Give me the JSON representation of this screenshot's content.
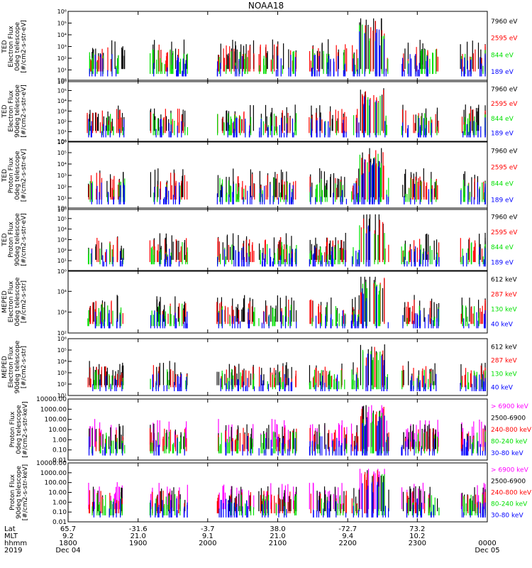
{
  "title": "NOAA18",
  "colors": {
    "black": "#000000",
    "red": "#ff0000",
    "green": "#00e000",
    "blue": "#0000ff",
    "magenta": "#ff00ff"
  },
  "footer": {
    "row_labels": [
      "Lat",
      "MLT",
      "hhmm",
      "2019"
    ],
    "columns": [
      {
        "values": [
          "65.7",
          "9.2",
          "1800",
          "Dec 04"
        ]
      },
      {
        "values": [
          "-31.6",
          "21.0",
          "1900",
          ""
        ]
      },
      {
        "values": [
          "-3.7",
          "9.1",
          "2000",
          ""
        ]
      },
      {
        "values": [
          "38.0",
          "21.0",
          "2100",
          ""
        ]
      },
      {
        "values": [
          "-72.7",
          "9.4",
          "2200",
          ""
        ]
      },
      {
        "values": [
          "73.2",
          "10.2",
          "2300",
          ""
        ]
      },
      {
        "values": [
          "",
          "",
          "0000",
          "Dec 05"
        ]
      }
    ]
  },
  "chart_data": [
    {
      "type": "scatter",
      "ylabel": [
        "TED",
        "Electron Flux",
        "0deg telescope",
        "[#/cm2-s-str-eV]"
      ],
      "yscale": "log",
      "ylim": [
        1,
        1000000
      ],
      "ytick_labels": [
        "10^0",
        "10^1",
        "10^2",
        "10^3",
        "10^4",
        "10^5",
        "10^6"
      ],
      "x": [
        "1800",
        "1900",
        "2000",
        "2100",
        "2200",
        "2300",
        "0000"
      ],
      "series": [
        {
          "name": "7960 eV",
          "color": "#000000"
        },
        {
          "name": "2595 eV",
          "color": "#ff0000"
        },
        {
          "name": "844 eV",
          "color": "#00e000"
        },
        {
          "name": "189 eV",
          "color": "#0000ff"
        }
      ]
    },
    {
      "type": "scatter",
      "ylabel": [
        "TED",
        "Electron Flux",
        "90deg telescope",
        "[#/cm2-s-str-eV]"
      ],
      "yscale": "log",
      "ylim": [
        1,
        1000000
      ],
      "ytick_labels": [
        "10^0",
        "10^1",
        "10^2",
        "10^3",
        "10^4",
        "10^5",
        "10^6"
      ],
      "x": [
        "1800",
        "1900",
        "2000",
        "2100",
        "2200",
        "2300",
        "0000"
      ],
      "series": [
        {
          "name": "7960 eV",
          "color": "#000000"
        },
        {
          "name": "2595 eV",
          "color": "#ff0000"
        },
        {
          "name": "844 eV",
          "color": "#00e000"
        },
        {
          "name": "189 eV",
          "color": "#0000ff"
        }
      ]
    },
    {
      "type": "scatter",
      "ylabel": [
        "TED",
        "Proton Flux",
        "0deg telescope",
        "[#/cm2-s-str-eV]"
      ],
      "yscale": "log",
      "ylim": [
        1,
        1000000
      ],
      "ytick_labels": [
        "10^0",
        "10^1",
        "10^2",
        "10^3",
        "10^4",
        "10^5",
        "10^6"
      ],
      "x": [
        "1800",
        "1900",
        "2000",
        "2100",
        "2200",
        "2300",
        "0000"
      ],
      "series": [
        {
          "name": "7960 eV",
          "color": "#000000"
        },
        {
          "name": "2595 eV",
          "color": "#ff0000"
        },
        {
          "name": "844 eV",
          "color": "#00e000"
        },
        {
          "name": "189 eV",
          "color": "#0000ff"
        }
      ]
    },
    {
      "type": "scatter",
      "ylabel": [
        "TED",
        "Proton Flux",
        "90deg telescope",
        "[#/cm2-s-str-eV]"
      ],
      "yscale": "log",
      "ylim": [
        1,
        1000000
      ],
      "ytick_labels": [
        "10^0",
        "10^1",
        "10^2",
        "10^3",
        "10^4",
        "10^5",
        "10^6"
      ],
      "x": [
        "1800",
        "1900",
        "2000",
        "2100",
        "2200",
        "2300",
        "0000"
      ],
      "series": [
        {
          "name": "7960 eV",
          "color": "#000000"
        },
        {
          "name": "2595 eV",
          "color": "#ff0000"
        },
        {
          "name": "844 eV",
          "color": "#00e000"
        },
        {
          "name": "189 eV",
          "color": "#0000ff"
        }
      ]
    },
    {
      "type": "scatter",
      "ylabel": [
        "MEPED",
        "Electron Flux",
        "0deg telescope",
        "[#/cm2-s-str]"
      ],
      "yscale": "log",
      "ylim": [
        100,
        100000
      ],
      "ytick_labels": [
        "10^2",
        "10^3",
        "10^4"
      ],
      "x": [
        "1800",
        "1900",
        "2000",
        "2100",
        "2200",
        "2300",
        "0000"
      ],
      "series": [
        {
          "name": "612 keV",
          "color": "#000000"
        },
        {
          "name": "287 keV",
          "color": "#ff0000"
        },
        {
          "name": "130 keV",
          "color": "#00e000"
        },
        {
          "name": "40 keV",
          "color": "#0000ff"
        }
      ]
    },
    {
      "type": "scatter",
      "ylabel": [
        "MEPED",
        "Electron Flux",
        "90deg telescope",
        "[#/cm2-s-str]"
      ],
      "yscale": "log",
      "ylim": [
        10,
        1000000
      ],
      "ytick_labels": [
        "10^1",
        "10^2",
        "10^3",
        "10^4",
        "10^5",
        "10^6"
      ],
      "x": [
        "1800",
        "1900",
        "2000",
        "2100",
        "2200",
        "2300",
        "0000"
      ],
      "series": [
        {
          "name": "612 keV",
          "color": "#000000"
        },
        {
          "name": "287 keV",
          "color": "#ff0000"
        },
        {
          "name": "130 keV",
          "color": "#00e000"
        },
        {
          "name": "40 keV",
          "color": "#0000ff"
        }
      ]
    },
    {
      "type": "scatter",
      "ylabel": [
        "Proton Flux",
        "0deg telescope",
        "[#/cm2-s-str-keV]"
      ],
      "yscale": "log",
      "ylim": [
        0.01,
        10000
      ],
      "ytick_labels": [
        "10000.00",
        "1000.00",
        "100.00",
        "10.00",
        "1.00",
        "0.10",
        "0.01"
      ],
      "x": [
        "1800",
        "1900",
        "2000",
        "2100",
        "2200",
        "2300",
        "0000"
      ],
      "series": [
        {
          "name": "> 6900 keV",
          "color": "#ff00ff"
        },
        {
          "name": "2500-6900",
          "color": "#000000"
        },
        {
          "name": "240-800 keV",
          "color": "#ff0000"
        },
        {
          "name": "80-240 keV",
          "color": "#00e000"
        },
        {
          "name": "30-80 keV",
          "color": "#0000ff"
        }
      ]
    },
    {
      "type": "scatter",
      "ylabel": [
        "Proton Flux",
        "90deg telescope",
        "[#/cm2-s-str-keV]"
      ],
      "yscale": "log",
      "ylim": [
        0.01,
        10000
      ],
      "ytick_labels": [
        "10000.00",
        "1000.00",
        "100.00",
        "10.00",
        "1.00",
        "0.10",
        "0.01"
      ],
      "x": [
        "1800",
        "1900",
        "2000",
        "2100",
        "2200",
        "2300",
        "0000"
      ],
      "series": [
        {
          "name": "> 6900 keV",
          "color": "#ff00ff"
        },
        {
          "name": "2500-6900",
          "color": "#000000"
        },
        {
          "name": "240-800 keV",
          "color": "#ff0000"
        },
        {
          "name": "80-240 keV",
          "color": "#00e000"
        },
        {
          "name": "30-80 keV",
          "color": "#0000ff"
        }
      ]
    }
  ]
}
